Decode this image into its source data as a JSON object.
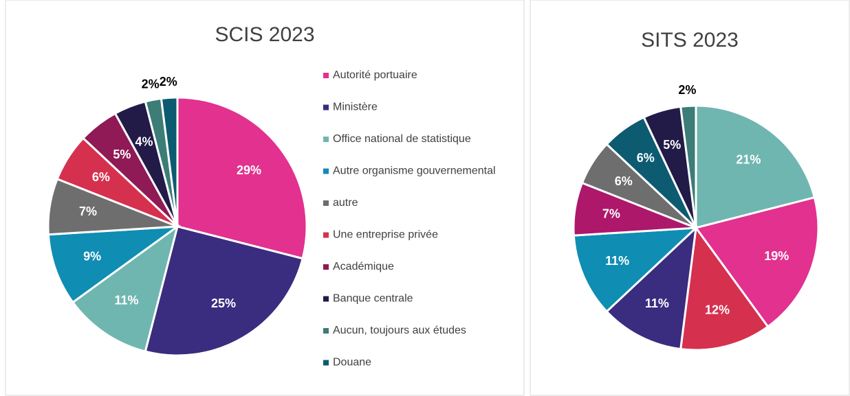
{
  "chart_data": [
    {
      "type": "pie",
      "title": "SCIS 2023",
      "legend": "right",
      "categories": [
        "Autorité portuaire",
        "Ministère",
        "Office national de statistique",
        "Autre organisme gouvernemental",
        "autre",
        "Une entreprise privée",
        "Académique",
        "Banque centrale",
        "Aucun, toujours aux études",
        "Douane"
      ],
      "values": [
        29,
        25,
        11,
        9,
        7,
        6,
        5,
        4,
        2,
        2
      ],
      "value_labels": [
        "29%",
        "25%",
        "11%",
        "9%",
        "7%",
        "6%",
        "5%",
        "4%",
        "2%",
        "2%"
      ],
      "colors": [
        "#e2318f",
        "#3a2c7e",
        "#70b6b0",
        "#0f8db3",
        "#6e6e6e",
        "#d6304f",
        "#8f1a55",
        "#221b48",
        "#3c7d77",
        "#0d5b70"
      ]
    },
    {
      "type": "pie",
      "title": "SITS 2023",
      "values": [
        21,
        19,
        12,
        11,
        11,
        7,
        6,
        6,
        5,
        2
      ],
      "value_labels": [
        "21%",
        "19%",
        "12%",
        "11%",
        "11%",
        "7%",
        "6%",
        "6%",
        "5%",
        "2%"
      ],
      "colors": [
        "#70b6b0",
        "#e2318f",
        "#d6304f",
        "#3a2c7e",
        "#0f8db3",
        "#ad186b",
        "#6e6e6e",
        "#0d5b70",
        "#221b48",
        "#3c7d77"
      ]
    }
  ]
}
